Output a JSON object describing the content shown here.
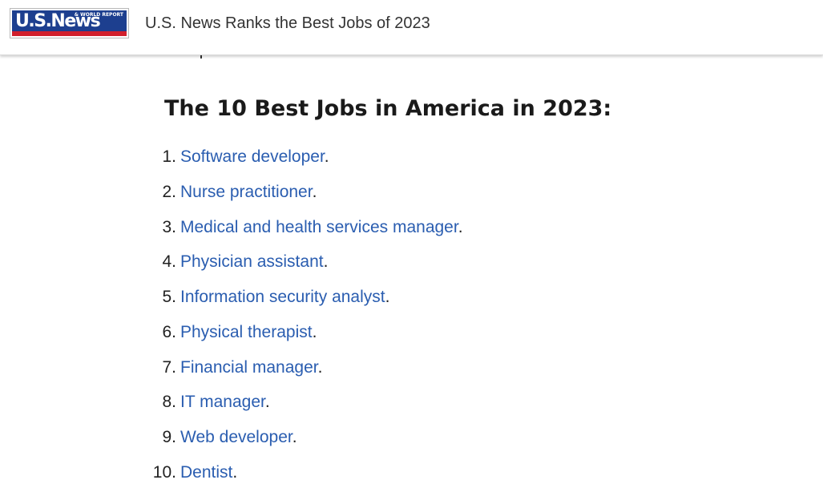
{
  "header": {
    "logo": {
      "text": "U.S.News",
      "subtext": "& WORLD REPORT"
    },
    "title": "U.S. News Ranks the Best Jobs of 2023"
  },
  "main": {
    "heading": "The 10 Best Jobs in America in 2023:",
    "jobs": [
      {
        "num": "1.",
        "label": "Software developer",
        "suffix": "."
      },
      {
        "num": "2.",
        "label": "Nurse practitioner",
        "suffix": "."
      },
      {
        "num": "3.",
        "label": "Medical and health services manager",
        "suffix": "."
      },
      {
        "num": "4.",
        "label": "Physician assistant",
        "suffix": "."
      },
      {
        "num": "5.",
        "label": "Information security analyst",
        "suffix": "."
      },
      {
        "num": "6.",
        "label": "Physical therapist",
        "suffix": "."
      },
      {
        "num": "7.",
        "label": "Financial manager",
        "suffix": "."
      },
      {
        "num": "8.",
        "label": "IT manager",
        "suffix": "."
      },
      {
        "num": "9.",
        "label": "Web developer",
        "suffix": "."
      },
      {
        "num": "10.",
        "label": "Dentist",
        "suffix": "."
      }
    ]
  },
  "colors": {
    "link": "#2a5db0",
    "logo_blue": "#1d3f8f",
    "logo_red": "#d11f2c"
  }
}
